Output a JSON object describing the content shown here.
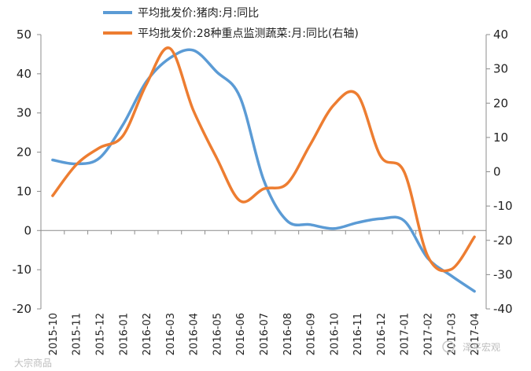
{
  "chart_data": {
    "type": "line",
    "categories": [
      "2015-10",
      "2015-11",
      "2015-12",
      "2016-01",
      "2016-02",
      "2016-03",
      "2016-04",
      "2016-05",
      "2016-06",
      "2016-07",
      "2016-08",
      "2016-09",
      "2016-10",
      "2016-11",
      "2016-12",
      "2017-01",
      "2017-02",
      "2017-03",
      "2017-04"
    ],
    "series": [
      {
        "name": "平均批发价:猪肉:月:同比",
        "axis": "left",
        "color": "#5b9bd5",
        "values": [
          18,
          17,
          18.5,
          27,
          38,
          44,
          46,
          40.5,
          34,
          13,
          2.5,
          1.5,
          0.5,
          2,
          3,
          2.5,
          -7,
          -11.5,
          -15.5
        ]
      },
      {
        "name": "平均批发价:28种重点监测蔬菜:月:同比(右轴)",
        "axis": "right",
        "color": "#ed7d31",
        "values": [
          -7,
          2,
          7,
          10.5,
          25.5,
          36,
          18,
          4,
          -8.5,
          -5,
          -3.5,
          8,
          19.5,
          22.5,
          4.5,
          0,
          -24.5,
          -28.5,
          -19
        ]
      }
    ],
    "y_left": {
      "min": -20,
      "max": 50,
      "ticks": [
        "-20",
        "-10",
        "0",
        "10",
        "20",
        "30",
        "40",
        "50"
      ]
    },
    "y_right": {
      "min": -40,
      "max": 40,
      "ticks": [
        "-40",
        "-30",
        "-20",
        "-10",
        "0",
        "10",
        "20",
        "30",
        "40"
      ]
    },
    "legend_position": "top",
    "grid": false
  },
  "legend": [
    {
      "label": "平均批发价:猪肉:月:同比",
      "color": "#5b9bd5"
    },
    {
      "label": "平均批发价:28种重点监测蔬菜:月:同比(右轴)",
      "color": "#ed7d31"
    }
  ],
  "watermarks": {
    "left": "大宗商品",
    "right": "泽平宏观"
  }
}
